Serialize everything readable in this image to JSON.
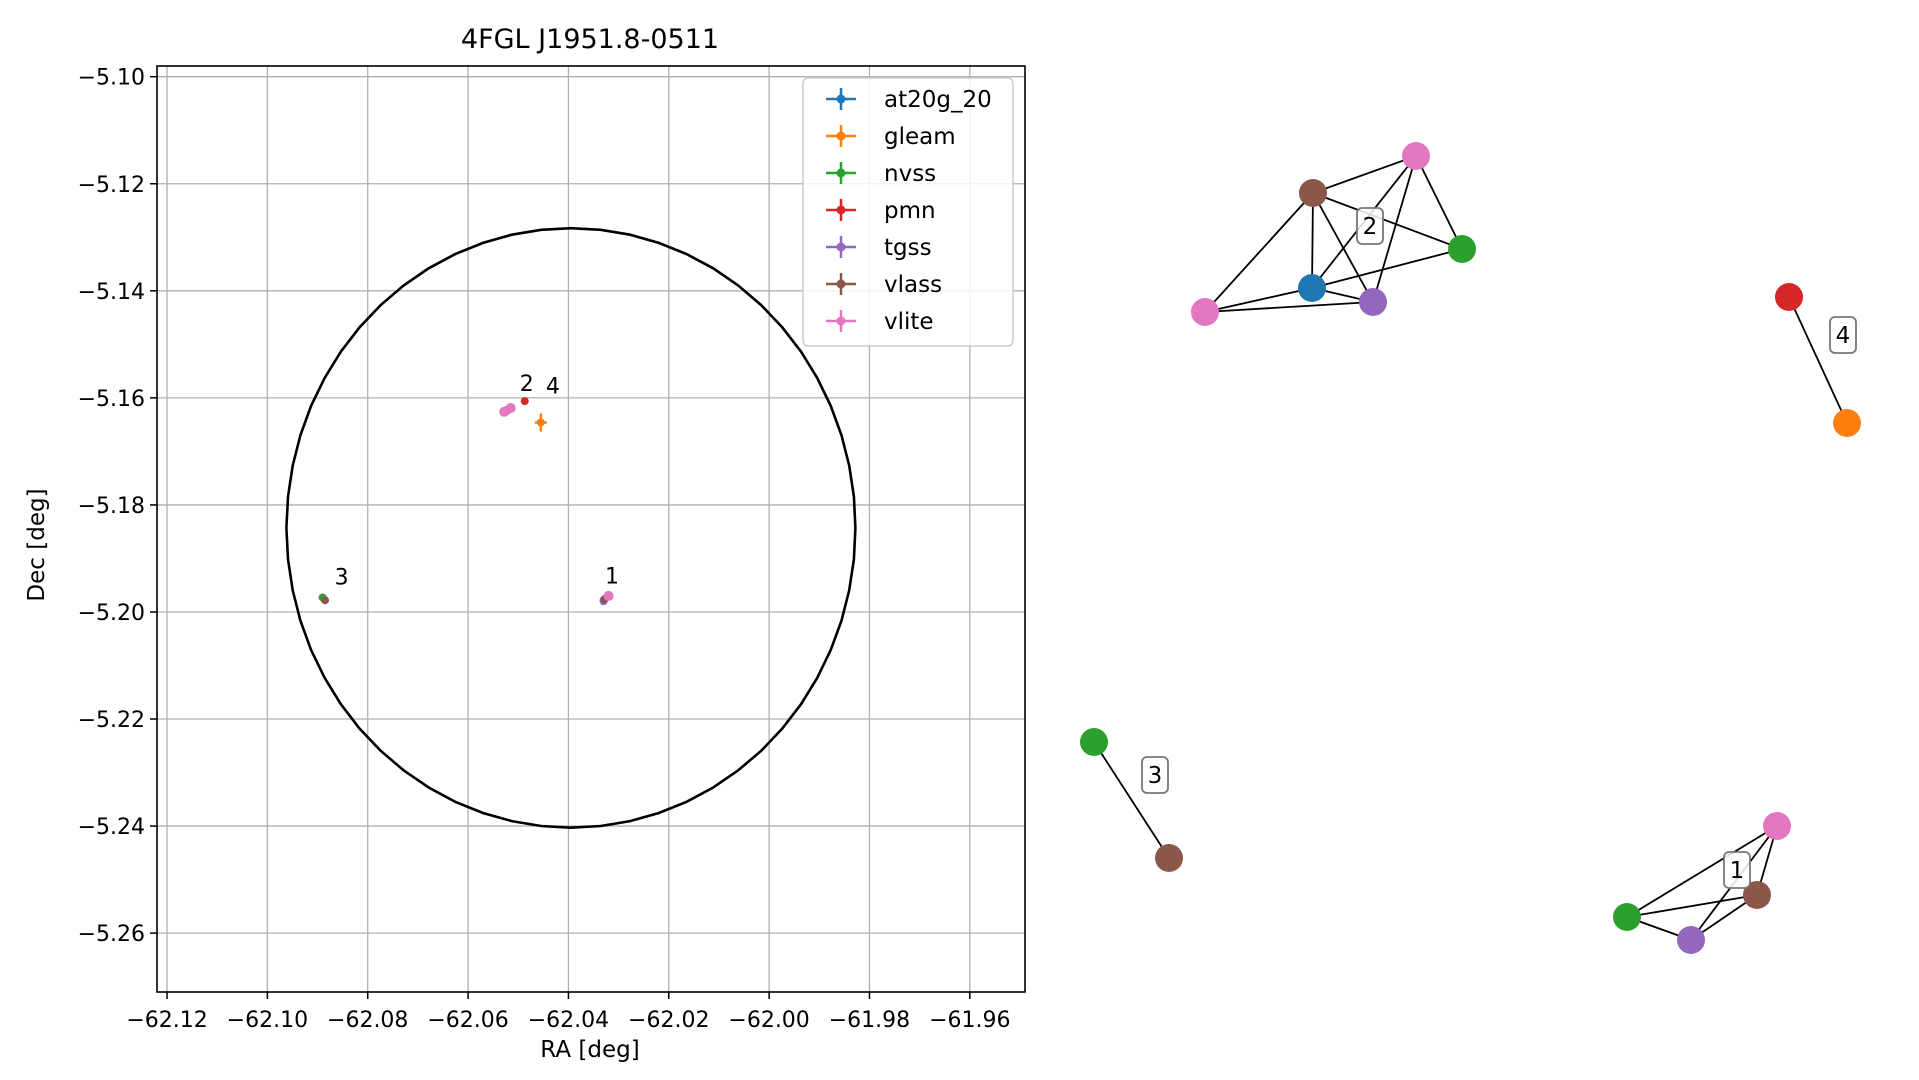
{
  "colors": {
    "at20g_20": "#1f77b4",
    "gleam": "#ff7f0e",
    "nvss": "#2ca02c",
    "pmn": "#d62728",
    "tgss": "#9467bd",
    "vlass": "#8c564b",
    "vlite": "#e377c2"
  },
  "chart_data": [
    {
      "type": "scatter",
      "title": "4FGL J1951.8-0511",
      "xlabel": "RA [deg]",
      "ylabel": "Dec [deg]",
      "xlim": [
        -62.122,
        -61.949
      ],
      "ylim": [
        -5.271,
        -5.098
      ],
      "x_inverted": false,
      "grid": true,
      "legend_position": "top-right",
      "xticks": [
        -62.12,
        -62.1,
        -62.08,
        -62.06,
        -62.04,
        -62.02,
        -62.0,
        -61.98,
        -61.96
      ],
      "xtick_labels": [
        "−62.12",
        "−62.10",
        "−62.08",
        "−62.06",
        "−62.04",
        "−62.02",
        "−62.00",
        "−61.98",
        "−61.96"
      ],
      "yticks": [
        -5.1,
        -5.12,
        -5.14,
        -5.16,
        -5.18,
        -5.2,
        -5.22,
        -5.24,
        -5.26
      ],
      "ytick_labels": [
        "−5.10",
        "−5.12",
        "−5.14",
        "−5.16",
        "−5.18",
        "−5.20",
        "−5.22",
        "−5.24",
        "−5.26"
      ],
      "legend": [
        "at20g_20",
        "gleam",
        "nvss",
        "pmn",
        "tgss",
        "vlass",
        "vlite"
      ],
      "circle": {
        "center": [
          -62.0395,
          -5.1843
        ],
        "radius_ra": 0.0567,
        "radius_dec": 0.056
      },
      "series": [
        {
          "name": "at20g_20",
          "points": [
            [
              -62.0521,
              -5.1622
            ]
          ]
        },
        {
          "name": "gleam",
          "points": [
            [
              -62.0455,
              -5.1646
            ]
          ]
        },
        {
          "name": "nvss",
          "points": [
            [
              -62.033,
              -5.1978
            ],
            [
              -62.089,
              -5.1973
            ]
          ]
        },
        {
          "name": "pmn",
          "points": [
            [
              -62.0487,
              -5.1606
            ]
          ]
        },
        {
          "name": "tgss",
          "points": [
            [
              -62.033,
              -5.198
            ],
            [
              -62.0522,
              -5.1624
            ]
          ]
        },
        {
          "name": "vlass",
          "points": [
            [
              -62.0328,
              -5.1976
            ],
            [
              -62.0885,
              -5.1978
            ],
            [
              -62.0523,
              -5.1623
            ]
          ]
        },
        {
          "name": "vlite",
          "points": [
            [
              -62.032,
              -5.197
            ],
            [
              -62.0528,
              -5.1626
            ],
            [
              -62.0515,
              -5.1619
            ]
          ]
        }
      ],
      "group_labels": [
        {
          "label": "1",
          "ra": -62.0327,
          "dec": -5.1947
        },
        {
          "label": "2",
          "ra": -62.0497,
          "dec": -5.1587
        },
        {
          "label": "3",
          "ra": -62.0866,
          "dec": -5.1949
        },
        {
          "label": "4",
          "ra": -62.0445,
          "dec": -5.1592
        }
      ]
    },
    {
      "type": "network",
      "groups": [
        {
          "label": "2",
          "nodes": [
            {
              "id": "a",
              "survey": "vlite"
            },
            {
              "id": "b",
              "survey": "vlass"
            },
            {
              "id": "c",
              "survey": "nvss"
            },
            {
              "id": "d",
              "survey": "at20g_20"
            },
            {
              "id": "e",
              "survey": "tgss"
            },
            {
              "id": "f",
              "survey": "vlite"
            }
          ],
          "edges": [
            [
              "a",
              "b"
            ],
            [
              "a",
              "c"
            ],
            [
              "a",
              "d"
            ],
            [
              "a",
              "e"
            ],
            [
              "b",
              "d"
            ],
            [
              "b",
              "e"
            ],
            [
              "b",
              "c"
            ],
            [
              "b",
              "f"
            ],
            [
              "d",
              "e"
            ],
            [
              "d",
              "f"
            ],
            [
              "e",
              "f"
            ],
            [
              "d",
              "c"
            ]
          ]
        },
        {
          "label": "4",
          "nodes": [
            {
              "id": "a",
              "survey": "pmn"
            },
            {
              "id": "b",
              "survey": "gleam"
            }
          ],
          "edges": [
            [
              "a",
              "b"
            ]
          ]
        },
        {
          "label": "3",
          "nodes": [
            {
              "id": "a",
              "survey": "nvss"
            },
            {
              "id": "b",
              "survey": "vlass"
            }
          ],
          "edges": [
            [
              "a",
              "b"
            ]
          ]
        },
        {
          "label": "1",
          "nodes": [
            {
              "id": "a",
              "survey": "vlite"
            },
            {
              "id": "b",
              "survey": "vlass"
            },
            {
              "id": "c",
              "survey": "nvss"
            },
            {
              "id": "d",
              "survey": "tgss"
            }
          ],
          "edges": [
            [
              "a",
              "b"
            ],
            [
              "a",
              "c"
            ],
            [
              "a",
              "d"
            ],
            [
              "b",
              "c"
            ],
            [
              "b",
              "d"
            ],
            [
              "c",
              "d"
            ]
          ]
        }
      ]
    }
  ]
}
